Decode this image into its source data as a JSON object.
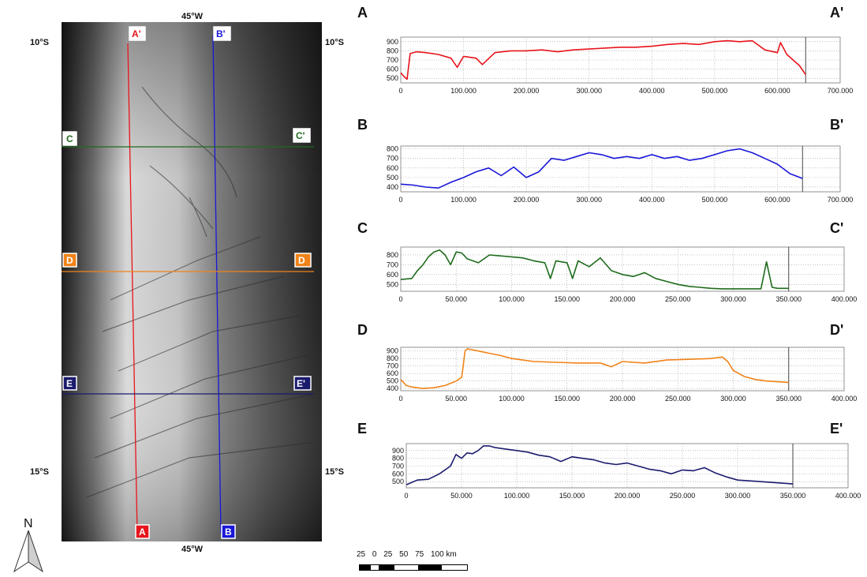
{
  "map": {
    "lon_label": "45°W",
    "lat_top": "10°S",
    "lat_bottom": "15°S",
    "north_label": "N",
    "section_lines": [
      {
        "start": "A",
        "end": "A'",
        "color": "#e8141c"
      },
      {
        "start": "B",
        "end": "B'",
        "color": "#1a17d8"
      },
      {
        "start": "C",
        "end": "C'",
        "color": "#1f6b1c"
      },
      {
        "start": "D",
        "end": "D'",
        "color": "#f08319"
      },
      {
        "start": "E",
        "end": "E'",
        "color": "#1b1b6e"
      }
    ]
  },
  "scale_bar": {
    "labels": [
      "25",
      "0",
      "25",
      "50",
      "75",
      "100 km"
    ]
  },
  "chart_data": [
    {
      "type": "line",
      "start_label": "A",
      "end_label": "A'",
      "color": "#e8141c",
      "xlim": [
        0,
        700000
      ],
      "ylim": [
        450,
        950
      ],
      "xticks": [
        "0",
        "100.000",
        "200.000",
        "300.000",
        "400.000",
        "500.000",
        "600.000",
        "700.000"
      ],
      "yticks": [
        "500",
        "600",
        "700",
        "800",
        "900"
      ],
      "x": [
        0,
        5000,
        10000,
        15000,
        25000,
        40000,
        60000,
        80000,
        90000,
        100000,
        120000,
        130000,
        150000,
        175000,
        200000,
        225000,
        250000,
        275000,
        300000,
        325000,
        350000,
        375000,
        400000,
        425000,
        450000,
        475000,
        500000,
        520000,
        540000,
        560000,
        580000,
        600000,
        605000,
        615000,
        625000,
        635000,
        645000
      ],
      "y": [
        560,
        520,
        490,
        770,
        790,
        780,
        760,
        720,
        620,
        740,
        720,
        650,
        780,
        800,
        800,
        810,
        790,
        810,
        820,
        830,
        840,
        840,
        850,
        870,
        880,
        870,
        900,
        910,
        900,
        910,
        810,
        780,
        890,
        760,
        700,
        640,
        540
      ]
    },
    {
      "type": "line",
      "start_label": "B",
      "end_label": "B'",
      "color": "#1a17d8",
      "xlim": [
        0,
        700000
      ],
      "ylim": [
        350,
        830
      ],
      "xticks": [
        "0",
        "100.000",
        "200.000",
        "300.000",
        "400.000",
        "500.000",
        "600.000",
        "700.000"
      ],
      "yticks": [
        "400",
        "500",
        "600",
        "700",
        "800"
      ],
      "x": [
        0,
        20000,
        40000,
        60000,
        80000,
        100000,
        120000,
        140000,
        160000,
        180000,
        200000,
        220000,
        240000,
        260000,
        280000,
        300000,
        320000,
        340000,
        360000,
        380000,
        400000,
        420000,
        440000,
        460000,
        480000,
        500000,
        520000,
        540000,
        560000,
        580000,
        600000,
        620000,
        640000
      ],
      "y": [
        430,
        420,
        400,
        390,
        450,
        500,
        560,
        600,
        520,
        610,
        500,
        560,
        700,
        680,
        720,
        760,
        740,
        700,
        720,
        700,
        740,
        700,
        720,
        680,
        700,
        740,
        780,
        800,
        760,
        700,
        640,
        540,
        490
      ]
    },
    {
      "type": "line",
      "start_label": "C",
      "end_label": "C'",
      "color": "#1f6b1c",
      "xlim": [
        0,
        400000
      ],
      "ylim": [
        430,
        880
      ],
      "xticks": [
        "0",
        "50.000",
        "100.000",
        "150.000",
        "200.000",
        "250.000",
        "300.000",
        "350.000",
        "400.000"
      ],
      "yticks": [
        "500",
        "600",
        "700",
        "800"
      ],
      "x": [
        0,
        10000,
        15000,
        20000,
        25000,
        30000,
        35000,
        40000,
        45000,
        50000,
        55000,
        60000,
        70000,
        80000,
        90000,
        100000,
        110000,
        120000,
        130000,
        135000,
        140000,
        150000,
        155000,
        160000,
        170000,
        180000,
        190000,
        200000,
        210000,
        220000,
        230000,
        240000,
        250000,
        260000,
        270000,
        280000,
        290000,
        300000,
        310000,
        320000,
        325000,
        330000,
        335000,
        340000,
        345000,
        350000
      ],
      "y": [
        550,
        560,
        640,
        700,
        780,
        830,
        850,
        800,
        700,
        830,
        820,
        760,
        720,
        800,
        790,
        780,
        770,
        740,
        720,
        560,
        740,
        720,
        560,
        740,
        680,
        770,
        640,
        600,
        580,
        620,
        560,
        530,
        500,
        480,
        470,
        460,
        455,
        455,
        455,
        455,
        455,
        730,
        470,
        460,
        460,
        460
      ]
    },
    {
      "type": "line",
      "start_label": "D",
      "end_label": "D'",
      "color": "#f08319",
      "xlim": [
        0,
        400000
      ],
      "ylim": [
        370,
        950
      ],
      "xticks": [
        "0",
        "50.000",
        "100.000",
        "150.000",
        "200.000",
        "250.000",
        "300.000",
        "350.000",
        "400.000"
      ],
      "yticks": [
        "400",
        "500",
        "600",
        "700",
        "800",
        "900"
      ],
      "x": [
        0,
        5000,
        10000,
        20000,
        30000,
        40000,
        50000,
        55000,
        58000,
        60000,
        70000,
        80000,
        90000,
        100000,
        110000,
        120000,
        140000,
        160000,
        180000,
        190000,
        200000,
        220000,
        240000,
        260000,
        280000,
        290000,
        295000,
        300000,
        310000,
        320000,
        330000,
        340000,
        350000
      ],
      "y": [
        520,
        440,
        420,
        400,
        410,
        440,
        500,
        550,
        900,
        930,
        900,
        870,
        840,
        800,
        780,
        760,
        750,
        740,
        740,
        690,
        760,
        740,
        780,
        790,
        800,
        820,
        760,
        640,
        560,
        520,
        500,
        490,
        480
      ]
    },
    {
      "type": "line",
      "start_label": "E",
      "end_label": "E'",
      "color": "#1b1b6e",
      "xlim": [
        0,
        400000
      ],
      "ylim": [
        420,
        990
      ],
      "xticks": [
        "0",
        "50.000",
        "100.000",
        "150.000",
        "200.000",
        "250.000",
        "300.000",
        "350.000",
        "400.000"
      ],
      "yticks": [
        "500",
        "600",
        "700",
        "800",
        "900"
      ],
      "x": [
        0,
        10000,
        20000,
        30000,
        40000,
        45000,
        50000,
        55000,
        60000,
        65000,
        70000,
        75000,
        80000,
        90000,
        100000,
        110000,
        120000,
        130000,
        140000,
        150000,
        160000,
        170000,
        180000,
        190000,
        200000,
        210000,
        220000,
        230000,
        240000,
        250000,
        260000,
        270000,
        280000,
        290000,
        300000,
        320000,
        340000,
        350000
      ],
      "y": [
        460,
        520,
        530,
        600,
        700,
        850,
        800,
        870,
        860,
        900,
        960,
        960,
        940,
        920,
        900,
        880,
        840,
        820,
        760,
        820,
        800,
        780,
        740,
        720,
        740,
        700,
        660,
        640,
        600,
        650,
        640,
        680,
        610,
        560,
        520,
        500,
        480,
        470
      ]
    }
  ]
}
